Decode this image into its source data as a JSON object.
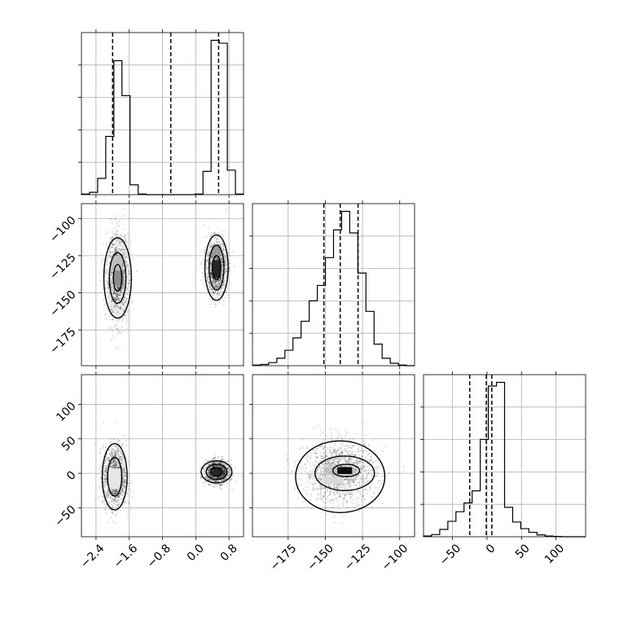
{
  "chart_data": {
    "type": "corner",
    "grid": true,
    "variables": [
      {
        "name": "",
        "range": [
          -2.75,
          1.15
        ],
        "ticks": [
          -2.4,
          -1.6,
          -0.8,
          0.0,
          0.8
        ],
        "tick_labels": [
          "−2.4",
          "−1.6",
          "−0.8",
          "0.0",
          "0.8"
        ]
      },
      {
        "name": "",
        "range": [
          -199,
          -90
        ],
        "ticks": [
          -175,
          -150,
          -125,
          -100
        ],
        "tick_labels": [
          "−175",
          "−150",
          "−125",
          "−100"
        ]
      },
      {
        "name": "",
        "range": [
          -92,
          143
        ],
        "ticks": [
          -50,
          0,
          50,
          100
        ],
        "tick_labels": [
          "−50",
          "0",
          "50",
          "100"
        ]
      }
    ],
    "histograms": [
      {
        "variable": 0,
        "edges": [
          -2.75,
          -2.555,
          -2.36,
          -2.165,
          -1.97,
          -1.775,
          -1.58,
          -1.385,
          -1.19,
          -0.995,
          -0.8,
          -0.605,
          -0.41,
          -0.215,
          -0.02,
          0.175,
          0.37,
          0.565,
          0.76,
          0.955,
          1.15
        ],
        "counts": [
          1,
          4,
          28,
          100,
          230,
          170,
          17,
          1,
          0,
          0,
          0,
          0,
          0,
          0,
          1,
          40,
          265,
          260,
          42,
          1
        ],
        "quantiles": [
          -2.0,
          -0.6,
          0.55
        ]
      },
      {
        "variable": 1,
        "edges": [
          -199,
          -193.55,
          -188.1,
          -182.65,
          -177.2,
          -171.75,
          -166.3,
          -160.85,
          -155.4,
          -149.95,
          -144.5,
          -139.05,
          -133.6,
          -128.15,
          -122.7,
          -117.25,
          -111.8,
          -106.35,
          -100.9,
          -95.45,
          -90
        ],
        "counts": [
          1,
          2,
          5,
          12,
          25,
          45,
          72,
          105,
          130,
          175,
          220,
          250,
          215,
          150,
          88,
          35,
          12,
          4,
          1,
          0
        ],
        "quantiles": [
          -151,
          -140,
          -128
        ]
      },
      {
        "variable": 2,
        "edges": [
          -92,
          -80.25,
          -68.5,
          -56.75,
          -45,
          -33.25,
          -21.5,
          -9.75,
          2,
          13.75,
          25.5,
          37.25,
          49,
          60.75,
          72.5,
          84.25,
          96,
          107.75,
          119.5,
          131.25,
          143
        ],
        "counts": [
          2,
          6,
          20,
          42,
          68,
          92,
          125,
          265,
          410,
          420,
          80,
          40,
          22,
          12,
          5,
          2,
          1,
          0,
          0,
          0
        ],
        "quantiles": [
          -25,
          -1,
          7
        ]
      }
    ],
    "scatter_panels": [
      {
        "x_variable": 0,
        "y_variable": 1,
        "clusters": [
          {
            "mean": [
              -1.88,
              -140
            ],
            "sd": [
              0.13,
              14
            ]
          },
          {
            "mean": [
              0.5,
              -133
            ],
            "sd": [
              0.12,
              9
            ]
          }
        ],
        "density_cells": [
          {
            "x": -1.85,
            "y": -140,
            "w": 0.25,
            "h": 10,
            "shade": 0.45
          },
          {
            "x": -1.9,
            "y": -130,
            "w": 0.25,
            "h": 10,
            "shade": 0.25
          },
          {
            "x": 0.5,
            "y": -134,
            "w": 0.2,
            "h": 12,
            "shade": 0.85
          },
          {
            "x": 0.5,
            "y": -122,
            "w": 0.2,
            "h": 8,
            "shade": 0.4
          }
        ],
        "contours": [
          {
            "cx": -1.88,
            "cy": -140,
            "rx": 0.33,
            "ry": 27
          },
          {
            "cx": -1.88,
            "cy": -140,
            "rx": 0.2,
            "ry": 17
          },
          {
            "cx": -1.88,
            "cy": -140,
            "rx": 0.1,
            "ry": 9
          },
          {
            "cx": 0.5,
            "cy": -133,
            "rx": 0.28,
            "ry": 22
          },
          {
            "cx": 0.5,
            "cy": -133,
            "rx": 0.18,
            "ry": 15
          },
          {
            "cx": 0.5,
            "cy": -133,
            "rx": 0.1,
            "ry": 8
          }
        ]
      },
      {
        "x_variable": 0,
        "y_variable": 2,
        "clusters": [
          {
            "mean": [
              -1.95,
              -5
            ],
            "sd": [
              0.14,
              22
            ]
          },
          {
            "mean": [
              0.52,
              2
            ],
            "sd": [
              0.14,
              8
            ]
          }
        ],
        "density_cells": [
          {
            "x": -1.95,
            "y": -8,
            "w": 0.3,
            "h": 30,
            "shade": 0.1
          },
          {
            "x": 0.5,
            "y": 3,
            "w": 0.15,
            "h": 10,
            "shade": 0.85
          }
        ],
        "contours": [
          {
            "cx": -1.95,
            "cy": -5,
            "rx": 0.3,
            "ry": 48
          },
          {
            "cx": -1.95,
            "cy": -5,
            "rx": 0.17,
            "ry": 28
          },
          {
            "cx": 0.5,
            "cy": 2,
            "rx": 0.37,
            "ry": 16
          },
          {
            "cx": 0.5,
            "cy": 2,
            "rx": 0.25,
            "ry": 11
          },
          {
            "cx": 0.5,
            "cy": 2,
            "rx": 0.13,
            "ry": 6
          }
        ]
      },
      {
        "x_variable": 1,
        "y_variable": 2,
        "clusters": [
          {
            "mean": [
              -140,
              2
            ],
            "sd": [
              12,
              22
            ]
          }
        ],
        "density_cells": [
          {
            "x": -140,
            "y": 3,
            "w": 22,
            "h": 12,
            "shade": 0.25
          },
          {
            "x": -137,
            "y": 4,
            "w": 10,
            "h": 10,
            "shade": 0.95
          },
          {
            "x": -145,
            "y": -10,
            "w": 14,
            "h": 10,
            "shade": 0.15
          }
        ],
        "contours": [
          {
            "cx": -140,
            "cy": -5,
            "rx": 30,
            "ry": 52
          },
          {
            "cx": -137,
            "cy": 0,
            "rx": 20,
            "ry": 25
          },
          {
            "cx": -136,
            "cy": 4,
            "rx": 9,
            "ry": 9
          }
        ]
      }
    ]
  }
}
